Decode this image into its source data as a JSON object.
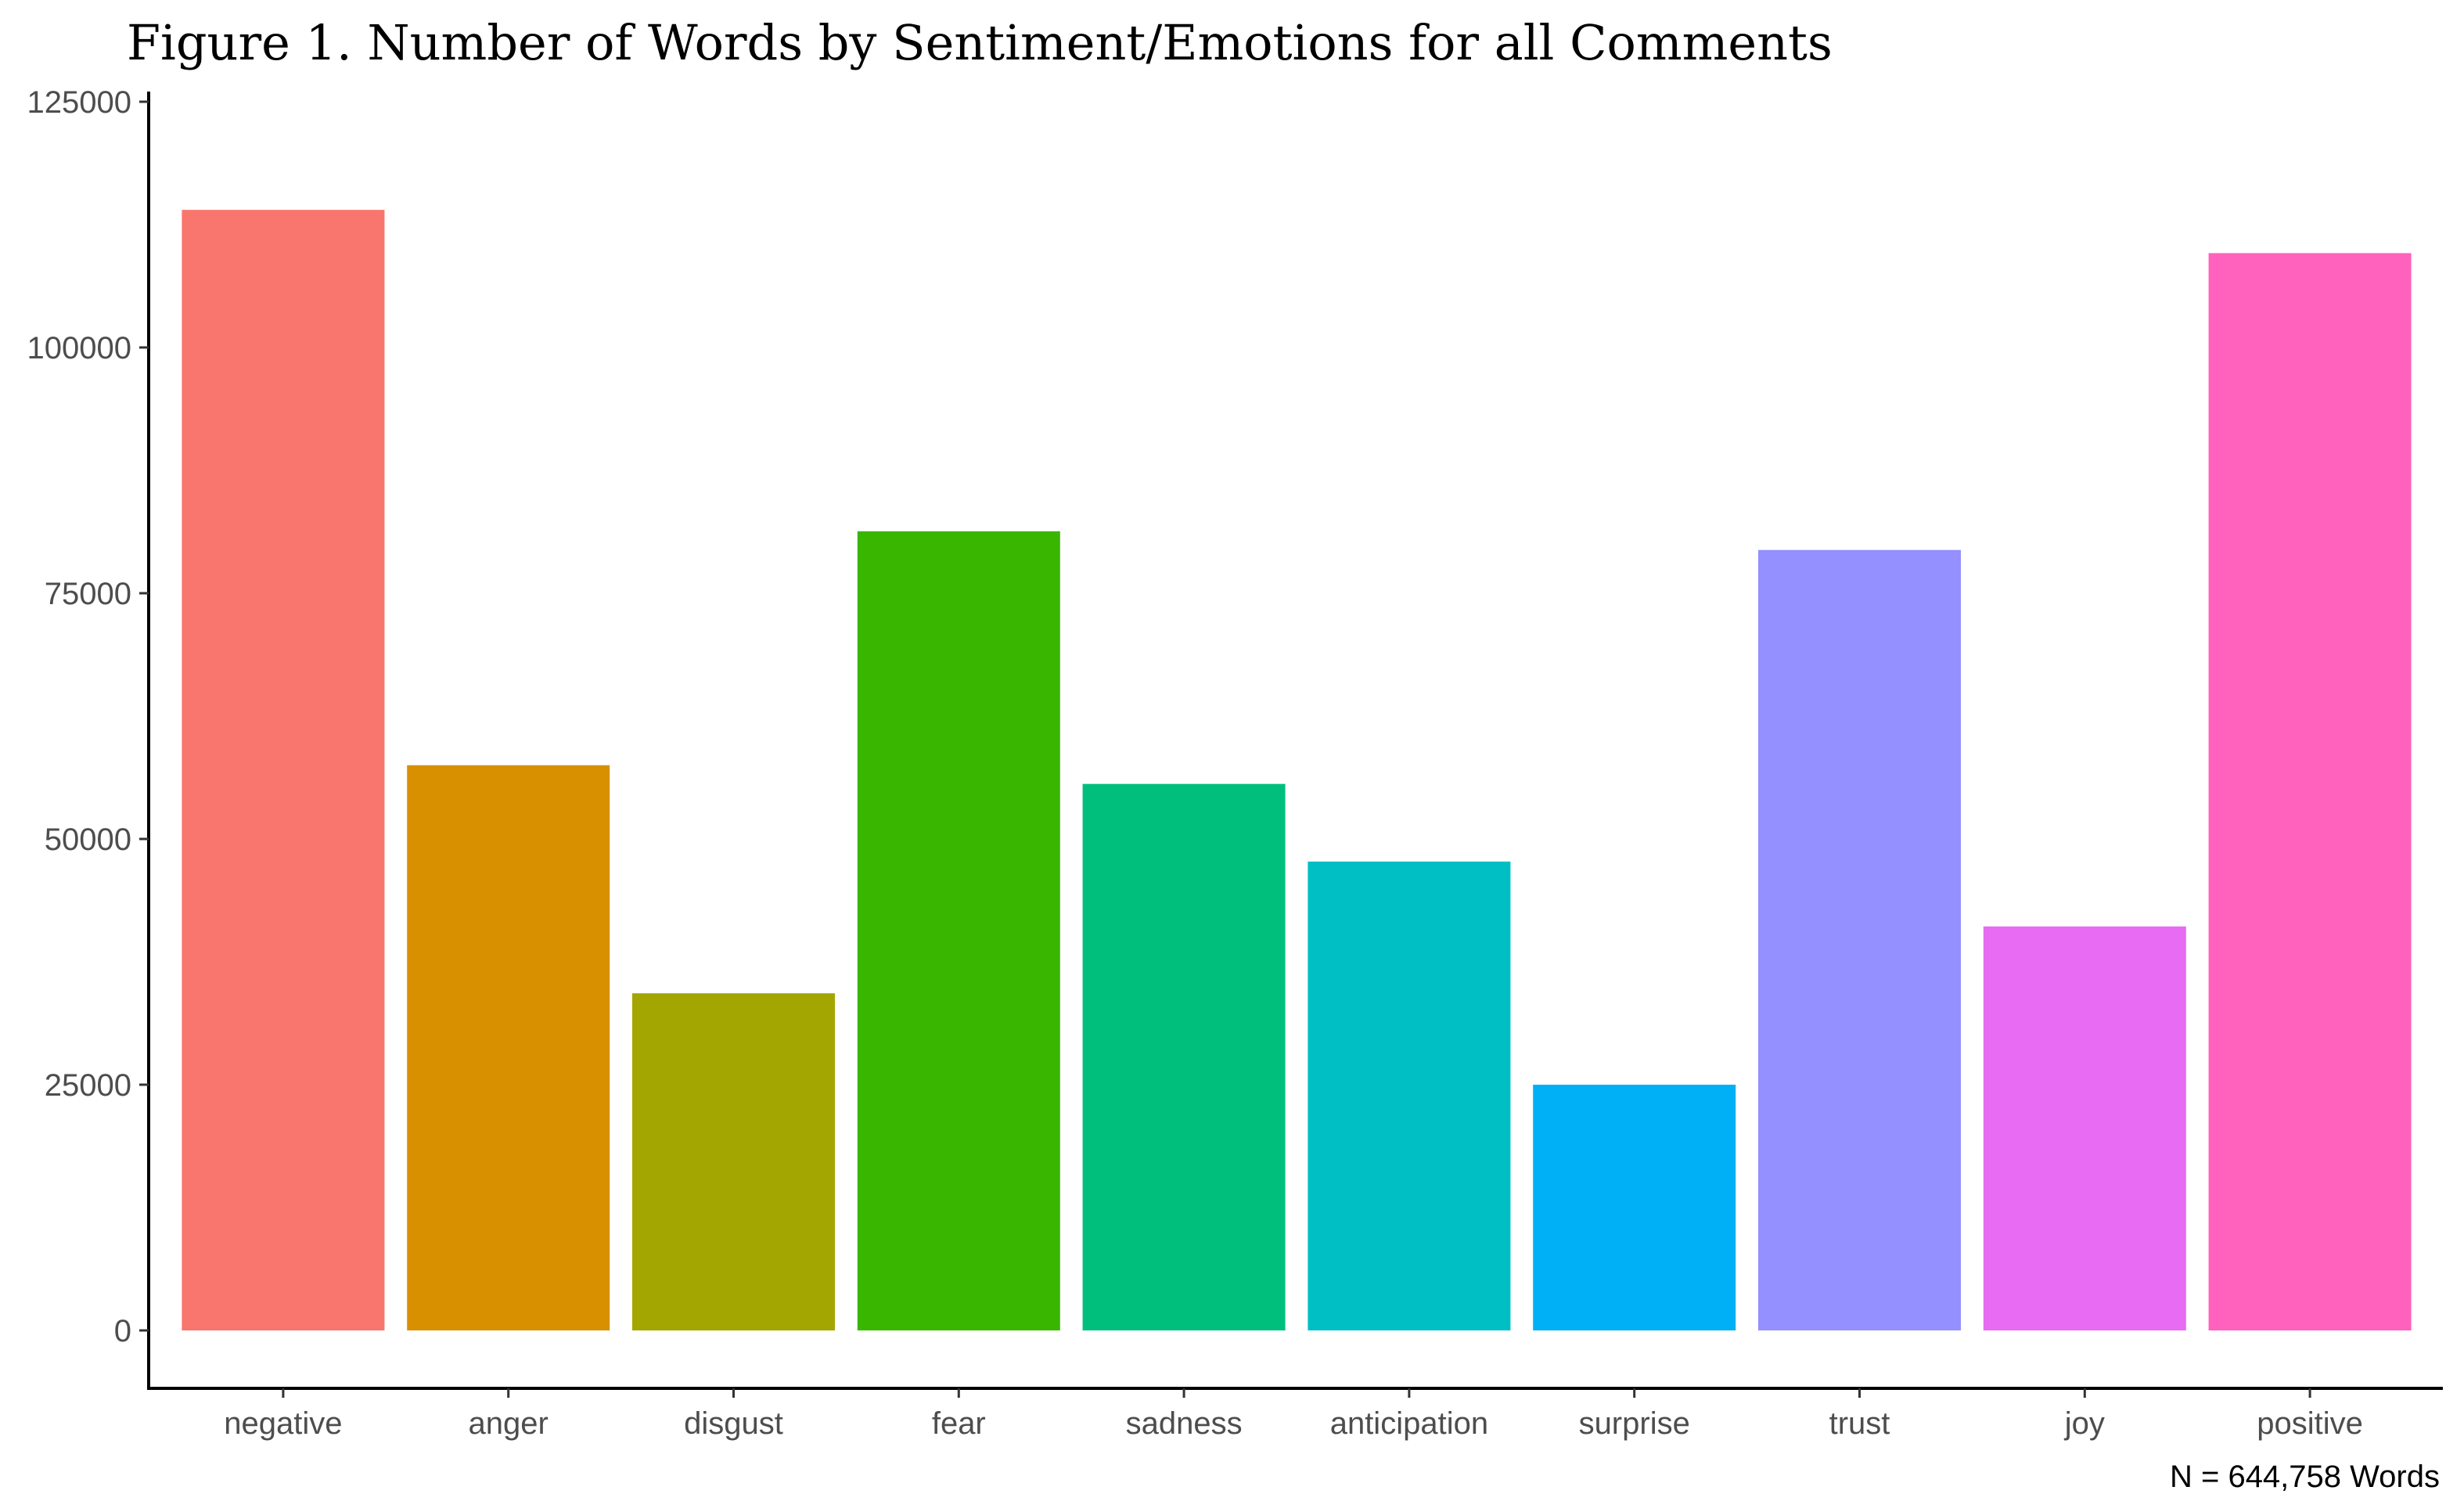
{
  "chart_data": {
    "type": "bar",
    "title": "Figure 1. Number of Words by Sentiment/Emotions for all Comments",
    "caption": "N = 644,758 Words",
    "xlabel": "",
    "ylabel": "",
    "ylim": [
      0,
      125000
    ],
    "yticks": [
      0,
      25000,
      50000,
      75000,
      100000,
      125000
    ],
    "grid": false,
    "legend": "none",
    "categories": [
      "negative",
      "anger",
      "disgust",
      "fear",
      "sadness",
      "anticipation",
      "surprise",
      "trust",
      "joy",
      "positive"
    ],
    "values": [
      114000,
      57500,
      34300,
      81300,
      55600,
      47700,
      25000,
      79400,
      41100,
      109600
    ],
    "colors": [
      "#F8766D",
      "#D89000",
      "#A3A500",
      "#39B600",
      "#00BF7D",
      "#00BFC4",
      "#00B0F6",
      "#9590FF",
      "#E76BF3",
      "#FF62BC"
    ]
  }
}
